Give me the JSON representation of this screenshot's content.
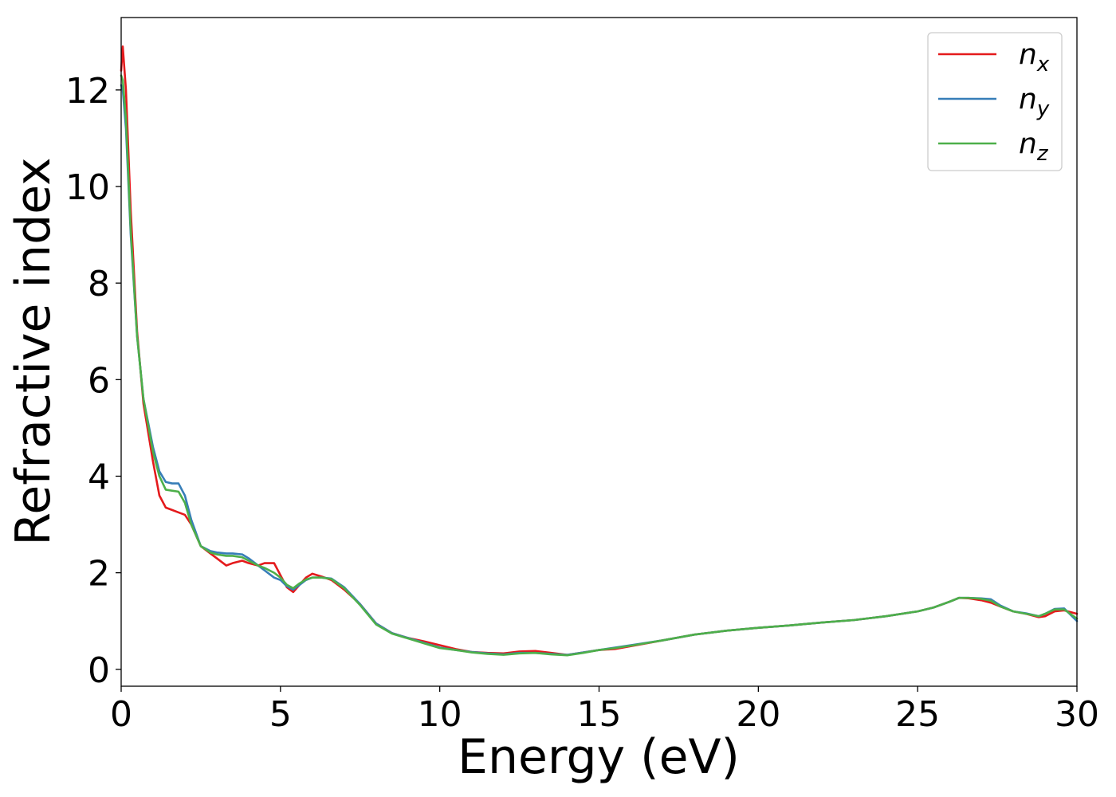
{
  "chart_data": {
    "type": "line",
    "xlabel": "Energy (eV)",
    "ylabel": "Refractive index",
    "xlim": [
      0,
      30
    ],
    "ylim": [
      -0.35,
      13.5
    ],
    "xticks": [
      0,
      5,
      10,
      15,
      20,
      25,
      30
    ],
    "yticks": [
      0,
      2,
      4,
      6,
      8,
      10,
      12
    ],
    "grid": false,
    "legend_position": "top-right",
    "colors": {
      "n_x": "#e41a1c",
      "n_y": "#377eb8",
      "n_z": "#4daf4a"
    },
    "series": [
      {
        "key": "n_x",
        "name": "n",
        "subscript": "x",
        "x": [
          0,
          0.05,
          0.15,
          0.3,
          0.5,
          0.7,
          1.0,
          1.2,
          1.4,
          1.6,
          1.8,
          2.0,
          2.2,
          2.5,
          2.8,
          3.0,
          3.3,
          3.5,
          3.8,
          4.0,
          4.3,
          4.5,
          4.8,
          5.0,
          5.2,
          5.4,
          5.6,
          5.8,
          6.0,
          6.3,
          6.6,
          7.0,
          7.5,
          8.0,
          8.5,
          9.0,
          9.5,
          10.0,
          10.5,
          11.0,
          11.5,
          12.0,
          12.5,
          13.0,
          13.5,
          14.0,
          14.5,
          15.0,
          15.5,
          16.0,
          17.0,
          18.0,
          19.0,
          20.0,
          21.0,
          22.0,
          23.0,
          24.0,
          25.0,
          25.5,
          26.0,
          26.3,
          26.6,
          27.0,
          27.3,
          27.6,
          28.0,
          28.4,
          28.8,
          29.0,
          29.3,
          29.6,
          30.0
        ],
        "y": [
          12.4,
          12.9,
          12.0,
          9.5,
          7.0,
          5.5,
          4.3,
          3.6,
          3.35,
          3.3,
          3.25,
          3.2,
          3.0,
          2.55,
          2.4,
          2.3,
          2.15,
          2.2,
          2.25,
          2.2,
          2.15,
          2.2,
          2.2,
          1.95,
          1.7,
          1.6,
          1.75,
          1.9,
          1.98,
          1.92,
          1.85,
          1.65,
          1.35,
          0.95,
          0.75,
          0.65,
          0.58,
          0.5,
          0.42,
          0.36,
          0.34,
          0.33,
          0.37,
          0.38,
          0.34,
          0.3,
          0.35,
          0.4,
          0.42,
          0.48,
          0.6,
          0.72,
          0.8,
          0.86,
          0.91,
          0.97,
          1.02,
          1.1,
          1.2,
          1.28,
          1.4,
          1.48,
          1.47,
          1.43,
          1.38,
          1.3,
          1.2,
          1.15,
          1.08,
          1.1,
          1.2,
          1.22,
          1.15
        ]
      },
      {
        "key": "n_y",
        "name": "n",
        "subscript": "y",
        "x": [
          0,
          0.05,
          0.15,
          0.3,
          0.5,
          0.7,
          1.0,
          1.2,
          1.4,
          1.6,
          1.8,
          2.0,
          2.2,
          2.5,
          2.8,
          3.0,
          3.3,
          3.5,
          3.8,
          4.0,
          4.3,
          4.5,
          4.8,
          5.0,
          5.2,
          5.4,
          5.6,
          5.8,
          6.0,
          6.3,
          6.6,
          7.0,
          7.5,
          8.0,
          8.5,
          9.0,
          9.5,
          10.0,
          10.5,
          11.0,
          11.5,
          12.0,
          12.5,
          13.0,
          13.5,
          14.0,
          14.5,
          15.0,
          15.5,
          16.0,
          17.0,
          18.0,
          19.0,
          20.0,
          21.0,
          22.0,
          23.0,
          24.0,
          25.0,
          25.5,
          26.0,
          26.3,
          26.6,
          27.0,
          27.3,
          27.6,
          28.0,
          28.4,
          28.8,
          29.0,
          29.3,
          29.6,
          30.0
        ],
        "y": [
          12.1,
          12.0,
          11.2,
          9.0,
          6.9,
          5.6,
          4.6,
          4.1,
          3.88,
          3.85,
          3.85,
          3.6,
          3.1,
          2.55,
          2.45,
          2.42,
          2.4,
          2.4,
          2.38,
          2.3,
          2.15,
          2.05,
          1.9,
          1.85,
          1.72,
          1.65,
          1.75,
          1.85,
          1.9,
          1.9,
          1.88,
          1.7,
          1.35,
          0.95,
          0.75,
          0.65,
          0.55,
          0.45,
          0.4,
          0.36,
          0.33,
          0.31,
          0.34,
          0.34,
          0.32,
          0.3,
          0.35,
          0.4,
          0.45,
          0.5,
          0.6,
          0.72,
          0.8,
          0.86,
          0.91,
          0.97,
          1.02,
          1.1,
          1.2,
          1.28,
          1.4,
          1.48,
          1.48,
          1.47,
          1.45,
          1.32,
          1.2,
          1.16,
          1.1,
          1.15,
          1.25,
          1.26,
          1.0
        ]
      },
      {
        "key": "n_z",
        "name": "n",
        "subscript": "z",
        "x": [
          0,
          0.05,
          0.15,
          0.3,
          0.5,
          0.7,
          1.0,
          1.2,
          1.4,
          1.6,
          1.8,
          2.0,
          2.2,
          2.5,
          2.8,
          3.0,
          3.3,
          3.5,
          3.8,
          4.0,
          4.3,
          4.5,
          4.8,
          5.0,
          5.2,
          5.4,
          5.6,
          5.8,
          6.0,
          6.3,
          6.6,
          7.0,
          7.5,
          8.0,
          8.5,
          9.0,
          9.5,
          10.0,
          10.5,
          11.0,
          11.5,
          12.0,
          12.5,
          13.0,
          13.5,
          14.0,
          14.5,
          15.0,
          15.5,
          16.0,
          17.0,
          18.0,
          19.0,
          20.0,
          21.0,
          22.0,
          23.0,
          24.0,
          25.0,
          25.5,
          26.0,
          26.3,
          26.6,
          27.0,
          27.3,
          27.6,
          28.0,
          28.4,
          28.8,
          29.0,
          29.3,
          29.6,
          30.0
        ],
        "y": [
          12.3,
          12.2,
          11.4,
          9.1,
          6.9,
          5.6,
          4.5,
          4.0,
          3.72,
          3.7,
          3.68,
          3.45,
          3.0,
          2.55,
          2.42,
          2.38,
          2.35,
          2.35,
          2.32,
          2.25,
          2.15,
          2.1,
          2.0,
          1.9,
          1.75,
          1.68,
          1.78,
          1.86,
          1.9,
          1.9,
          1.87,
          1.68,
          1.33,
          0.93,
          0.74,
          0.64,
          0.54,
          0.44,
          0.4,
          0.35,
          0.32,
          0.3,
          0.33,
          0.34,
          0.31,
          0.29,
          0.34,
          0.4,
          0.44,
          0.49,
          0.6,
          0.72,
          0.8,
          0.86,
          0.91,
          0.97,
          1.02,
          1.1,
          1.2,
          1.28,
          1.4,
          1.48,
          1.48,
          1.46,
          1.42,
          1.3,
          1.2,
          1.15,
          1.1,
          1.15,
          1.24,
          1.24,
          1.05
        ]
      }
    ]
  }
}
